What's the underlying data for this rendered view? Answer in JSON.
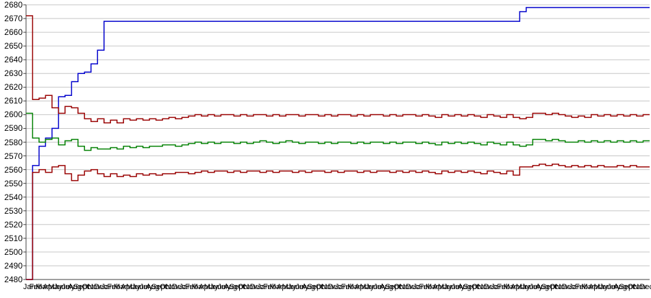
{
  "chart_data": {
    "type": "line",
    "title": "",
    "legend": "none",
    "grid": true,
    "plot_bg": "#FFFFFF",
    "colors": {
      "gridline": "#C6C6C6",
      "axis": "#404040",
      "label_text": "#000000"
    },
    "y_axis": {
      "label": "",
      "min": 2480,
      "max": 2680,
      "step": 10,
      "tick_labels": [
        "2480",
        "2490",
        "2500",
        "2510",
        "2520",
        "2530",
        "2540",
        "2550",
        "2560",
        "2570",
        "2580",
        "2590",
        "2600",
        "2610",
        "2620",
        "2630",
        "2640",
        "2650",
        "2660",
        "2670",
        "2680"
      ]
    },
    "x_axis": {
      "label": "",
      "tick_labels": [
        "Jan",
        "Feb",
        "Mar",
        "Apr",
        "May",
        "June",
        "July",
        "Aug",
        "Sept",
        "Oct",
        "Nov",
        "Dec",
        "Jan",
        "Feb",
        "Mar",
        "Apr",
        "May",
        "June",
        "July",
        "Aug",
        "Sept",
        "Oct",
        "Nov",
        "Dec",
        "Jan",
        "Feb",
        "Mar",
        "Apr",
        "May",
        "June",
        "July",
        "Aug",
        "Sept",
        "Oct",
        "Nov",
        "Dec",
        "Jan",
        "Feb",
        "Mar",
        "Apr",
        "May",
        "June",
        "July",
        "Aug",
        "Sept",
        "Oct",
        "Nov",
        "Dec",
        "Jan",
        "Feb",
        "Mar",
        "Apr",
        "May",
        "June",
        "July",
        "Aug",
        "Sept",
        "Oct",
        "Nov",
        "Dec",
        "Jan",
        "Feb",
        "Mar",
        "Apr",
        "May",
        "June",
        "July",
        "Aug",
        "Sept",
        "Oct",
        "Nov",
        "Dec",
        "Jan",
        "Feb",
        "Mar",
        "Apr",
        "May",
        "June",
        "July",
        "Aug",
        "Sept",
        "Oct",
        "Nov",
        "Dec",
        "Jan",
        "Feb",
        "Mar",
        "Apr",
        "May",
        "June",
        "July",
        "Aug",
        "Sept",
        "Oct",
        "Nov",
        "Dec"
      ]
    },
    "series": [
      {
        "name": "series-1-blue",
        "color": "#0000CC",
        "values": [
          2480,
          2563,
          2577,
          2583,
          2590,
          2613,
          2614,
          2624,
          2630,
          2631,
          2637,
          2647,
          2668,
          2668,
          2668,
          2668,
          2668,
          2668,
          2668,
          2668,
          2668,
          2668,
          2668,
          2668,
          2668,
          2668,
          2668,
          2668,
          2668,
          2668,
          2668,
          2668,
          2668,
          2668,
          2668,
          2668,
          2668,
          2668,
          2668,
          2668,
          2668,
          2668,
          2668,
          2668,
          2668,
          2668,
          2668,
          2668,
          2668,
          2668,
          2668,
          2668,
          2668,
          2668,
          2668,
          2668,
          2668,
          2668,
          2668,
          2668,
          2668,
          2668,
          2668,
          2668,
          2668,
          2668,
          2668,
          2668,
          2668,
          2668,
          2668,
          2668,
          2668,
          2668,
          2668,
          2668,
          2675,
          2678,
          2678,
          2678,
          2678,
          2678,
          2678,
          2678,
          2678,
          2678,
          2678,
          2678,
          2678,
          2678,
          2678,
          2678,
          2678,
          2678,
          2678,
          2678
        ]
      },
      {
        "name": "series-2-dark-red-upper",
        "color": "#990000",
        "values": [
          2672,
          2611,
          2612,
          2614,
          2605,
          2601,
          2606,
          2605,
          2601,
          2597,
          2595,
          2597,
          2594,
          2596,
          2594,
          2597,
          2596,
          2597,
          2596,
          2597,
          2596,
          2597,
          2598,
          2597,
          2598,
          2599,
          2600,
          2599,
          2600,
          2599,
          2600,
          2600,
          2599,
          2600,
          2599,
          2600,
          2600,
          2599,
          2600,
          2599,
          2600,
          2600,
          2599,
          2600,
          2600,
          2599,
          2600,
          2599,
          2600,
          2600,
          2599,
          2600,
          2599,
          2600,
          2600,
          2599,
          2600,
          2599,
          2600,
          2600,
          2599,
          2600,
          2599,
          2598,
          2600,
          2599,
          2600,
          2599,
          2600,
          2599,
          2598,
          2600,
          2599,
          2598,
          2600,
          2598,
          2597,
          2598,
          2601,
          2601,
          2600,
          2601,
          2600,
          2599,
          2598,
          2599,
          2598,
          2600,
          2599,
          2600,
          2599,
          2600,
          2599,
          2600,
          2599,
          2600
        ]
      },
      {
        "name": "series-3-green",
        "color": "#008000",
        "values": [
          2601,
          2583,
          2580,
          2582,
          2583,
          2578,
          2581,
          2582,
          2577,
          2574,
          2576,
          2575,
          2575,
          2576,
          2575,
          2577,
          2576,
          2577,
          2576,
          2577,
          2577,
          2578,
          2578,
          2577,
          2578,
          2579,
          2580,
          2579,
          2580,
          2579,
          2580,
          2580,
          2579,
          2580,
          2579,
          2580,
          2581,
          2580,
          2579,
          2580,
          2581,
          2580,
          2579,
          2580,
          2580,
          2579,
          2580,
          2579,
          2580,
          2580,
          2579,
          2580,
          2579,
          2580,
          2580,
          2579,
          2580,
          2579,
          2580,
          2580,
          2579,
          2580,
          2579,
          2578,
          2580,
          2579,
          2580,
          2579,
          2580,
          2579,
          2578,
          2580,
          2579,
          2578,
          2580,
          2578,
          2577,
          2578,
          2582,
          2582,
          2581,
          2582,
          2581,
          2580,
          2580,
          2581,
          2580,
          2581,
          2580,
          2581,
          2580,
          2581,
          2580,
          2581,
          2580,
          2581
        ]
      },
      {
        "name": "series-4-dark-red-lower",
        "color": "#990000",
        "values": [
          2480,
          2558,
          2560,
          2558,
          2562,
          2563,
          2557,
          2552,
          2556,
          2559,
          2560,
          2557,
          2555,
          2557,
          2555,
          2556,
          2555,
          2557,
          2556,
          2557,
          2556,
          2557,
          2557,
          2558,
          2558,
          2557,
          2558,
          2559,
          2558,
          2559,
          2559,
          2558,
          2559,
          2558,
          2559,
          2559,
          2558,
          2559,
          2558,
          2559,
          2559,
          2558,
          2559,
          2558,
          2559,
          2559,
          2558,
          2559,
          2558,
          2559,
          2559,
          2558,
          2559,
          2558,
          2559,
          2559,
          2558,
          2559,
          2558,
          2559,
          2558,
          2559,
          2558,
          2557,
          2559,
          2558,
          2559,
          2558,
          2559,
          2558,
          2557,
          2559,
          2558,
          2557,
          2559,
          2556,
          2562,
          2562,
          2563,
          2564,
          2563,
          2564,
          2563,
          2562,
          2563,
          2562,
          2563,
          2562,
          2563,
          2562,
          2562,
          2563,
          2562,
          2563,
          2562,
          2562
        ]
      }
    ]
  }
}
